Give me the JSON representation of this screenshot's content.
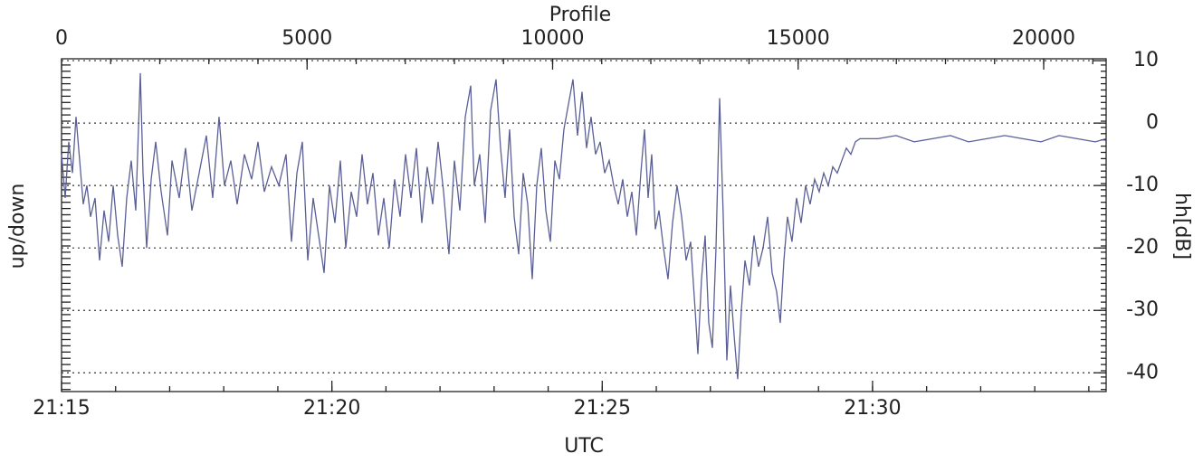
{
  "chart_data": {
    "type": "line",
    "xlabel": "Profile",
    "x2label": "UTC",
    "ylabel": "up/down",
    "y2label": "hh[dB]",
    "xlim": [
      0,
      21272
    ],
    "xticks": [
      0,
      5000,
      10000,
      15000,
      20000
    ],
    "x2ticks": [
      {
        "value": 0,
        "label": "21:15"
      },
      {
        "value": 5505,
        "label": "21:20"
      },
      {
        "value": 11010,
        "label": "21:25"
      },
      {
        "value": 16515,
        "label": "21:30"
      }
    ],
    "y2lim": [
      -43,
      10.3
    ],
    "y2ticks": [
      10,
      0,
      -10,
      -20,
      -30,
      -40
    ],
    "grid": true,
    "x": [
      0,
      74,
      147,
      221,
      295,
      369,
      442,
      516,
      590,
      682,
      774,
      866,
      959,
      1051,
      1143,
      1235,
      1327,
      1419,
      1511,
      1604,
      1659,
      1733,
      1825,
      1917,
      2028,
      2157,
      2249,
      2396,
      2525,
      2654,
      2802,
      2949,
      3078,
      3207,
      3318,
      3447,
      3576,
      3724,
      3871,
      4000,
      4129,
      4276,
      4424,
      4571,
      4682,
      4793,
      4903,
      5014,
      5124,
      5235,
      5346,
      5456,
      5567,
      5677,
      5788,
      5899,
      6009,
      6120,
      6230,
      6341,
      6452,
      6562,
      6673,
      6783,
      6894,
      7005,
      7115,
      7226,
      7336,
      7447,
      7558,
      7668,
      7779,
      7889,
      8000,
      8111,
      8221,
      8332,
      8405,
      8516,
      8627,
      8737,
      8848,
      8940,
      9032,
      9124,
      9217,
      9309,
      9401,
      9493,
      9585,
      9677,
      9769,
      9862,
      9954,
      10046,
      10138,
      10230,
      10322,
      10415,
      10507,
      10599,
      10691,
      10783,
      10875,
      10968,
      11060,
      11152,
      11244,
      11336,
      11428,
      11521,
      11613,
      11705,
      11797,
      11871,
      11945,
      12018,
      12092,
      12166,
      12258,
      12350,
      12442,
      12534,
      12627,
      12719,
      12811,
      12903,
      12958,
      13032,
      13106,
      13180,
      13253,
      13327,
      13401,
      13475,
      13548,
      13622,
      13696,
      13769,
      13843,
      13917,
      14009,
      14101,
      14193,
      14286,
      14378,
      14470,
      14562,
      14636,
      14710,
      14783,
      14875,
      14967,
      15060,
      15152,
      15244,
      15336,
      15428,
      15521,
      15613,
      15705,
      15797,
      15889,
      15981,
      16074,
      16166,
      16258,
      16626,
      16995,
      17364,
      17733,
      18101,
      18470,
      18839,
      19207,
      19576,
      19945,
      20313,
      20682,
      21051,
      21272
    ],
    "series": [
      {
        "color": "#5a5f96",
        "axis": "y2",
        "values": [
          -5,
          -12,
          -3,
          -8,
          1,
          -6,
          -13,
          -10,
          -15,
          -12,
          -22,
          -14,
          -19,
          -10,
          -18,
          -23,
          -12,
          -6,
          -14,
          8,
          -8,
          -20,
          -9,
          -3,
          -11,
          -18,
          -6,
          -12,
          -4,
          -14,
          -8,
          -2,
          -12,
          1,
          -10,
          -6,
          -13,
          -5,
          -9,
          -3,
          -11,
          -7,
          -10,
          -5,
          -19,
          -8,
          -3,
          -22,
          -12,
          -18,
          -24,
          -10,
          -16,
          -6,
          -20,
          -11,
          -15,
          -5,
          -13,
          -8,
          -18,
          -12,
          -20,
          -9,
          -15,
          -5,
          -12,
          -4,
          -16,
          -7,
          -13,
          -3,
          -11,
          -21,
          -6,
          -14,
          1,
          6,
          -10,
          -5,
          -16,
          2,
          7,
          -4,
          -12,
          -1,
          -15,
          -21,
          -8,
          -13,
          -25,
          -10,
          -4,
          -14,
          -19,
          -6,
          -9,
          -1,
          3,
          7,
          -2,
          5,
          -4,
          1,
          -5,
          -3,
          -8,
          -6,
          -10,
          -13,
          -9,
          -15,
          -11,
          -18,
          -8,
          -1,
          -12,
          -5,
          -17,
          -14,
          -20,
          -25,
          -16,
          -10,
          -15,
          -22,
          -19,
          -30,
          -37,
          -25,
          -18,
          -32,
          -36,
          -20,
          4,
          -15,
          -38,
          -26,
          -34,
          -41,
          -30,
          -22,
          -26,
          -18,
          -23,
          -20,
          -15,
          -24,
          -27,
          -32,
          -22,
          -15,
          -19,
          -12,
          -16,
          -10,
          -13,
          -9,
          -11,
          -8,
          -10,
          -7,
          -8,
          -6,
          -4,
          -5,
          -3,
          -2.5,
          -2.5,
          -2,
          -3,
          -2.5,
          -2,
          -3,
          -2.5,
          -2,
          -2.5,
          -3,
          -2,
          -2.5,
          -3,
          -2.5
        ]
      }
    ]
  }
}
